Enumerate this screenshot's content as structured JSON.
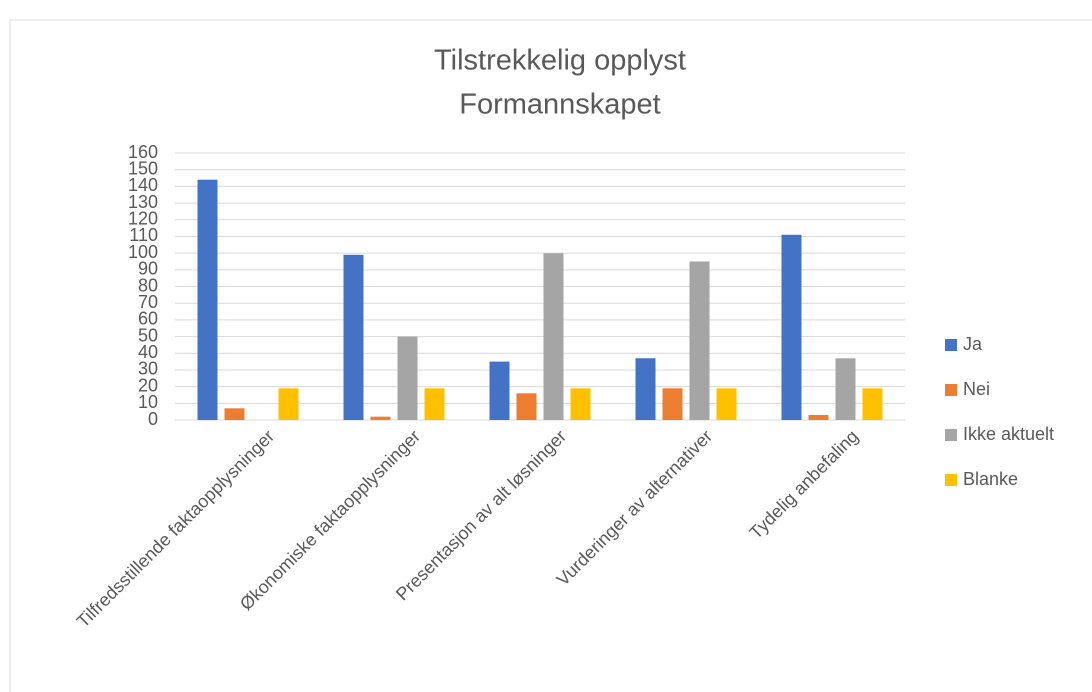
{
  "chart_data": {
    "type": "bar",
    "title": "Tilstrekkelig opplyst",
    "subtitle": "Formannskapet",
    "categories": [
      "Tilfredsstillende faktaopplysninger",
      "Økonomiske faktaopplysninger",
      "Presentasjon av alt løsninger",
      "Vurderinger av alternativer",
      "Tydelig anbefaling"
    ],
    "series": [
      {
        "name": "Ja",
        "color": "#4472c4",
        "values": [
          144,
          99,
          35,
          37,
          111
        ]
      },
      {
        "name": "Nei",
        "color": "#ed7d31",
        "values": [
          7,
          2,
          16,
          19,
          3
        ]
      },
      {
        "name": "Ikke aktuelt",
        "color": "#a5a5a5",
        "values": [
          0,
          50,
          100,
          95,
          37
        ]
      },
      {
        "name": "Blanke",
        "color": "#ffc000",
        "values": [
          19,
          19,
          19,
          19,
          19
        ]
      }
    ],
    "ylim": [
      0,
      160
    ],
    "yticks": [
      0,
      10,
      20,
      30,
      40,
      50,
      60,
      70,
      80,
      90,
      100,
      110,
      120,
      130,
      140,
      150,
      160
    ],
    "grid": true,
    "legend": "right"
  }
}
